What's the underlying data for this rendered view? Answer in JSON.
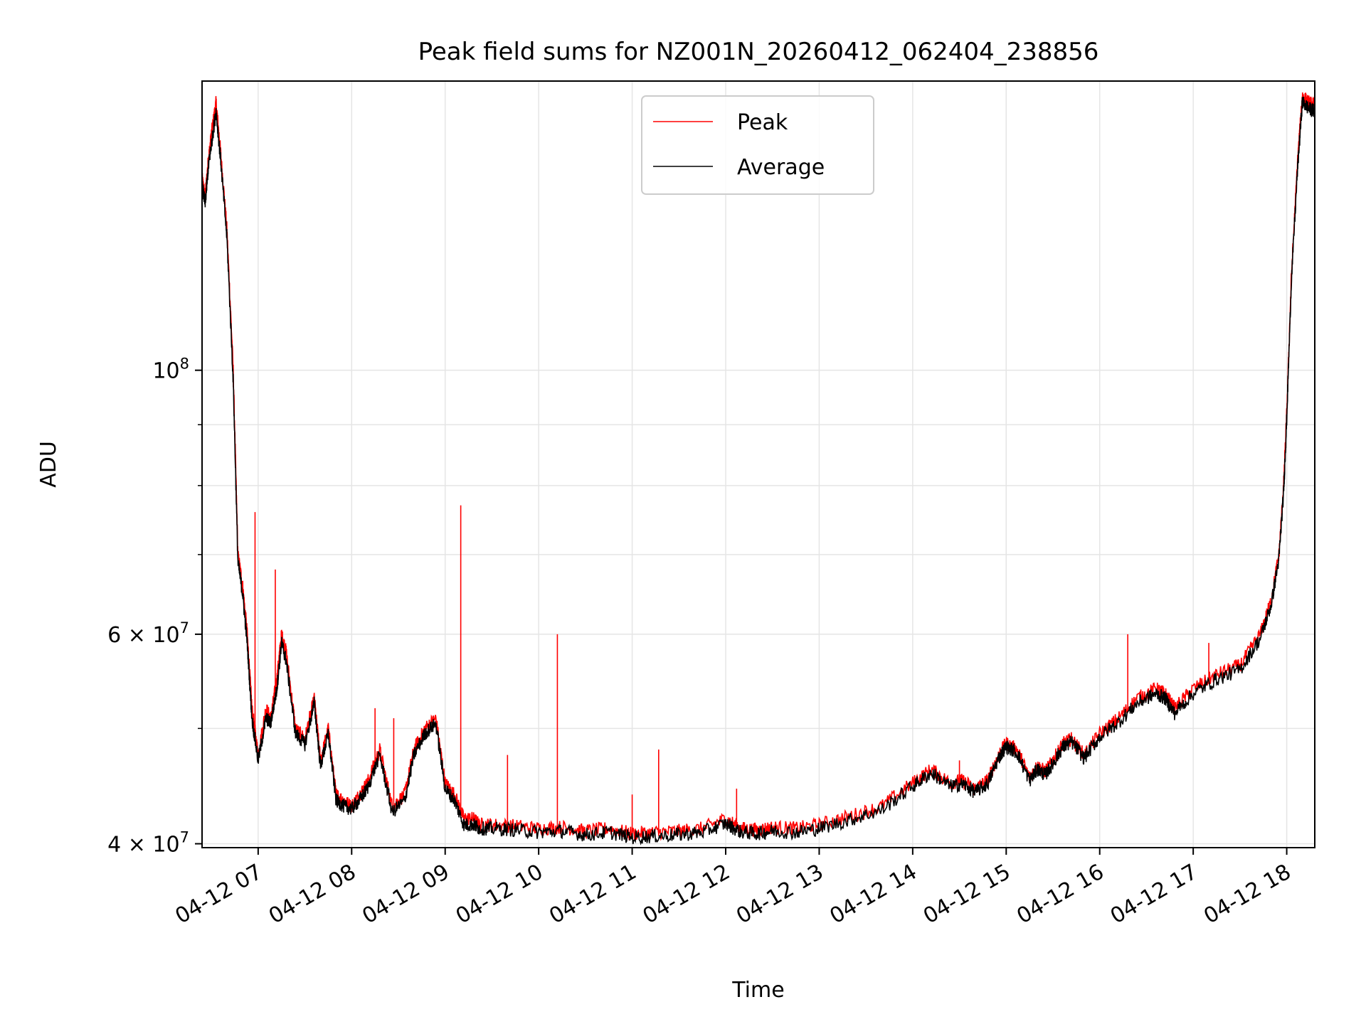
{
  "chart_data": {
    "type": "line",
    "title": "Peak field sums for NZ001N_20260412_062404_238856",
    "xlabel": "Time",
    "ylabel": "ADU",
    "x_axis_type": "datetime",
    "xlim": [
      "2026-04-12 06:24",
      "2026-04-12 18:18"
    ],
    "ylim": [
      39700000,
      175000000
    ],
    "y_scale": "log",
    "grid": true,
    "legend_position": "upper center",
    "x_ticks": [
      "04-12 07",
      "04-12 08",
      "04-12 09",
      "04-12 10",
      "04-12 11",
      "04-12 12",
      "04-12 13",
      "04-12 14",
      "04-12 15",
      "04-12 16",
      "04-12 17",
      "04-12 18"
    ],
    "y_ticks": [
      {
        "value": 40000000,
        "mantissa": "4",
        "exponent": "7"
      },
      {
        "value": 60000000,
        "mantissa": "6",
        "exponent": "7"
      },
      {
        "value": 100000000,
        "mantissa": "",
        "exponent": "8"
      }
    ],
    "x": [
      "2026-04-12 06:24",
      "2026-04-12 06:26",
      "2026-04-12 06:28",
      "2026-04-12 06:30",
      "2026-04-12 06:33",
      "2026-04-12 06:36",
      "2026-04-12 06:40",
      "2026-04-12 06:44",
      "2026-04-12 06:47",
      "2026-04-12 06:50",
      "2026-04-12 06:53",
      "2026-04-12 06:56",
      "2026-04-12 07:00",
      "2026-04-12 07:05",
      "2026-04-12 07:08",
      "2026-04-12 07:12",
      "2026-04-12 07:15",
      "2026-04-12 07:18",
      "2026-04-12 07:24",
      "2026-04-12 07:30",
      "2026-04-12 07:36",
      "2026-04-12 07:40",
      "2026-04-12 07:45",
      "2026-04-12 07:50",
      "2026-04-12 07:55",
      "2026-04-12 08:00",
      "2026-04-12 08:05",
      "2026-04-12 08:10",
      "2026-04-12 08:18",
      "2026-04-12 08:26",
      "2026-04-12 08:34",
      "2026-04-12 08:40",
      "2026-04-12 08:47",
      "2026-04-12 08:54",
      "2026-04-12 09:00",
      "2026-04-12 09:06",
      "2026-04-12 09:12",
      "2026-04-12 09:18",
      "2026-04-12 09:22",
      "2026-04-12 09:30",
      "2026-04-12 09:45",
      "2026-04-12 10:00",
      "2026-04-12 10:15",
      "2026-04-12 10:30",
      "2026-04-12 10:45",
      "2026-04-12 11:00",
      "2026-04-12 11:15",
      "2026-04-12 11:30",
      "2026-04-12 11:45",
      "2026-04-12 12:00",
      "2026-04-12 12:10",
      "2026-04-12 12:20",
      "2026-04-12 12:30",
      "2026-04-12 12:45",
      "2026-04-12 13:00",
      "2026-04-12 13:20",
      "2026-04-12 13:40",
      "2026-04-12 14:00",
      "2026-04-12 14:12",
      "2026-04-12 14:24",
      "2026-04-12 14:32",
      "2026-04-12 14:40",
      "2026-04-12 14:48",
      "2026-04-12 14:55",
      "2026-04-12 15:00",
      "2026-04-12 15:07",
      "2026-04-12 15:15",
      "2026-04-12 15:20",
      "2026-04-12 15:25",
      "2026-04-12 15:30",
      "2026-04-12 15:36",
      "2026-04-12 15:42",
      "2026-04-12 15:50",
      "2026-04-12 16:00",
      "2026-04-12 16:12",
      "2026-04-12 16:24",
      "2026-04-12 16:36",
      "2026-04-12 16:42",
      "2026-04-12 16:48",
      "2026-04-12 17:00",
      "2026-04-12 17:15",
      "2026-04-12 17:30",
      "2026-04-12 17:43",
      "2026-04-12 17:50",
      "2026-04-12 17:55",
      "2026-04-12 17:58",
      "2026-04-12 18:00",
      "2026-04-12 18:03",
      "2026-04-12 18:07",
      "2026-04-12 18:10",
      "2026-04-12 18:14",
      "2026-04-12 18:18"
    ],
    "series": [
      {
        "name": "Peak",
        "color": "#ff0000",
        "values": [
          145000000,
          140000000,
          150000000,
          158000000,
          168000000,
          152000000,
          131000000,
          100000000,
          70000000,
          66000000,
          60000000,
          52000000,
          47500000,
          52000000,
          51000000,
          55000000,
          60000000,
          58000000,
          50000000,
          49000000,
          53000000,
          47000000,
          50000000,
          44000000,
          43500000,
          43000000,
          44000000,
          45000000,
          48000000,
          43000000,
          44000000,
          48000000,
          50000000,
          51000000,
          45000000,
          44000000,
          42000000,
          42000000,
          41500000,
          41500000,
          41400000,
          41200000,
          41300000,
          41000000,
          41200000,
          40800000,
          40900000,
          41000000,
          41200000,
          42000000,
          41200000,
          41100000,
          41300000,
          41200000,
          41500000,
          42200000,
          43000000,
          45000000,
          46200000,
          45000000,
          45200000,
          44500000,
          45200000,
          47500000,
          48600000,
          48000000,
          45500000,
          46500000,
          46000000,
          47000000,
          48500000,
          49000000,
          47500000,
          49500000,
          51000000,
          53000000,
          54000000,
          53500000,
          52000000,
          54000000,
          55500000,
          56500000,
          60000000,
          64000000,
          70000000,
          80000000,
          92000000,
          120000000,
          150000000,
          170000000,
          168000000,
          167000000
        ],
        "spikes": [
          {
            "x": "2026-04-12 06:58",
            "value": 76000000
          },
          {
            "x": "2026-04-12 07:11",
            "value": 68000000
          },
          {
            "x": "2026-04-12 08:15",
            "value": 52000000
          },
          {
            "x": "2026-04-12 08:27",
            "value": 51000000
          },
          {
            "x": "2026-04-12 09:10",
            "value": 77000000
          },
          {
            "x": "2026-04-12 09:40",
            "value": 47500000
          },
          {
            "x": "2026-04-12 10:12",
            "value": 60000000
          },
          {
            "x": "2026-04-12 11:00",
            "value": 44000000
          },
          {
            "x": "2026-04-12 11:17",
            "value": 48000000
          },
          {
            "x": "2026-04-12 12:07",
            "value": 44500000
          },
          {
            "x": "2026-04-12 14:30",
            "value": 47000000
          },
          {
            "x": "2026-04-12 16:18",
            "value": 60000000
          },
          {
            "x": "2026-04-12 17:10",
            "value": 59000000
          }
        ]
      },
      {
        "name": "Average",
        "color": "#000000",
        "values": [
          143000000,
          138000000,
          148000000,
          155000000,
          165000000,
          150000000,
          129000000,
          98000000,
          69000000,
          65000000,
          59000000,
          51000000,
          47000000,
          51000000,
          50500000,
          54000000,
          59000000,
          57000000,
          49500000,
          48500000,
          52500000,
          46500000,
          49500000,
          43500000,
          43000000,
          42800000,
          43500000,
          44500000,
          47500000,
          42500000,
          43500000,
          47500000,
          49500000,
          50500000,
          44500000,
          43500000,
          41500000,
          41500000,
          41200000,
          41200000,
          41100000,
          40900000,
          41000000,
          40700000,
          40900000,
          40500000,
          40600000,
          40700000,
          40900000,
          41600000,
          40900000,
          40800000,
          41000000,
          40900000,
          41200000,
          41900000,
          42700000,
          44700000,
          45900000,
          44700000,
          44900000,
          44200000,
          44900000,
          47200000,
          48300000,
          47700000,
          45200000,
          46200000,
          45700000,
          46700000,
          48200000,
          48700000,
          47200000,
          49200000,
          50600000,
          52500000,
          53500000,
          53000000,
          51500000,
          53500000,
          55000000,
          56000000,
          59500000,
          63500000,
          69500000,
          79000000,
          91000000,
          119000000,
          148000000,
          168000000,
          166000000,
          165000000
        ]
      }
    ]
  }
}
